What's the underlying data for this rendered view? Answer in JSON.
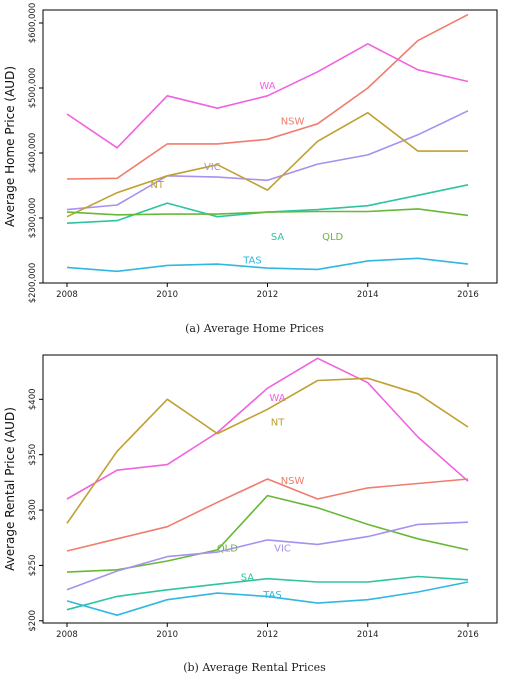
{
  "chart_data": [
    {
      "type": "line",
      "caption": "(a) Average Home Prices",
      "ylabel": "Average Home Price (AUD)",
      "xlim": [
        2008,
        2016
      ],
      "ylim": [
        200000,
        620000
      ],
      "x_ticks": [
        2008,
        2010,
        2012,
        2014,
        2016
      ],
      "x_tick_labels": [
        "2008",
        "2010",
        "2012",
        "2014",
        "2016"
      ],
      "y_ticks": [
        200000,
        300000,
        400000,
        500000,
        600000
      ],
      "y_tick_labels": [
        "$200,000",
        "$300,000",
        "$400,000",
        "$500,000",
        "$600,000"
      ],
      "grid": false,
      "legend": "inline labels",
      "x": [
        2008,
        2009,
        2010,
        2011,
        2012,
        2013,
        2014,
        2015,
        2016
      ],
      "series": [
        {
          "name": "WA",
          "color": "#f062e0",
          "label_at": [
            2012,
            505000
          ],
          "values": [
            460000,
            408000,
            488000,
            469000,
            488000,
            525000,
            568000,
            528000,
            510000
          ]
        },
        {
          "name": "NSW",
          "color": "#f07c6c",
          "label_at": [
            2012.5,
            450000
          ],
          "values": [
            360000,
            361000,
            414000,
            414000,
            421000,
            445000,
            500000,
            573000,
            613000
          ]
        },
        {
          "name": "VIC",
          "color": "#a890ee",
          "label_at": [
            2010.9,
            380000
          ],
          "values": [
            313000,
            320000,
            365000,
            363000,
            358000,
            383000,
            397000,
            428000,
            465000
          ]
        },
        {
          "name": "NT",
          "color": "#c0a030",
          "label_at": [
            2009.8,
            352000
          ],
          "values": [
            302000,
            339000,
            365000,
            382000,
            343000,
            418000,
            462000,
            403000,
            403000
          ]
        },
        {
          "name": "SA",
          "color": "#2ec4a0",
          "label_at": [
            2012.2,
            272000
          ],
          "values": [
            292000,
            296000,
            323000,
            302000,
            309000,
            313000,
            319000,
            335000,
            351000
          ]
        },
        {
          "name": "QLD",
          "color": "#68b838",
          "label_at": [
            2013.3,
            272000
          ],
          "values": [
            309000,
            305000,
            306000,
            306000,
            309000,
            310000,
            310000,
            314000,
            304000
          ]
        },
        {
          "name": "TAS",
          "color": "#30b8e0",
          "label_at": [
            2011.7,
            236000
          ],
          "values": [
            224000,
            218000,
            227000,
            229000,
            223000,
            221000,
            234000,
            238000,
            229000
          ]
        }
      ]
    },
    {
      "type": "line",
      "caption": "(b) Average Rental Prices",
      "ylabel": "Average Rental Price (AUD)",
      "xlim": [
        2008,
        2016
      ],
      "ylim": [
        198,
        440
      ],
      "x_ticks": [
        2008,
        2010,
        2012,
        2014,
        2016
      ],
      "x_tick_labels": [
        "2008",
        "2010",
        "2012",
        "2014",
        "2016"
      ],
      "y_ticks": [
        200,
        250,
        300,
        350,
        400
      ],
      "y_tick_labels": [
        "$200",
        "$250",
        "$300",
        "$350",
        "$400"
      ],
      "grid": false,
      "legend": "inline labels",
      "x": [
        2008,
        2009,
        2010,
        2011,
        2012,
        2013,
        2014,
        2015,
        2016
      ],
      "series": [
        {
          "name": "WA",
          "color": "#f062e0",
          "label_at": [
            2012.2,
            402
          ],
          "values": [
            310,
            336,
            341,
            370,
            410,
            437,
            415,
            366,
            326
          ]
        },
        {
          "name": "NT",
          "color": "#c0a030",
          "label_at": [
            2012.2,
            380
          ],
          "values": [
            288,
            353,
            400,
            369,
            391,
            417,
            419,
            405,
            375
          ]
        },
        {
          "name": "NSW",
          "color": "#f07c6c",
          "label_at": [
            2012.5,
            327
          ],
          "values": [
            263,
            274,
            285,
            307,
            328,
            310,
            320,
            324,
            328
          ]
        },
        {
          "name": "QLD",
          "color": "#68b838",
          "label_at": [
            2011.2,
            266
          ],
          "values": [
            244,
            246,
            254,
            264,
            313,
            302,
            287,
            274,
            264
          ]
        },
        {
          "name": "VIC",
          "color": "#a890ee",
          "label_at": [
            2012.3,
            266
          ],
          "values": [
            228,
            245,
            258,
            262,
            273,
            269,
            276,
            287,
            289
          ]
        },
        {
          "name": "SA",
          "color": "#2ec4a0",
          "label_at": [
            2011.6,
            240
          ],
          "values": [
            210,
            222,
            228,
            233,
            238,
            235,
            235,
            240,
            237
          ]
        },
        {
          "name": "TAS",
          "color": "#30b8e0",
          "label_at": [
            2012.1,
            224
          ],
          "values": [
            218,
            205,
            219,
            225,
            222,
            216,
            219,
            226,
            235
          ]
        }
      ]
    }
  ]
}
